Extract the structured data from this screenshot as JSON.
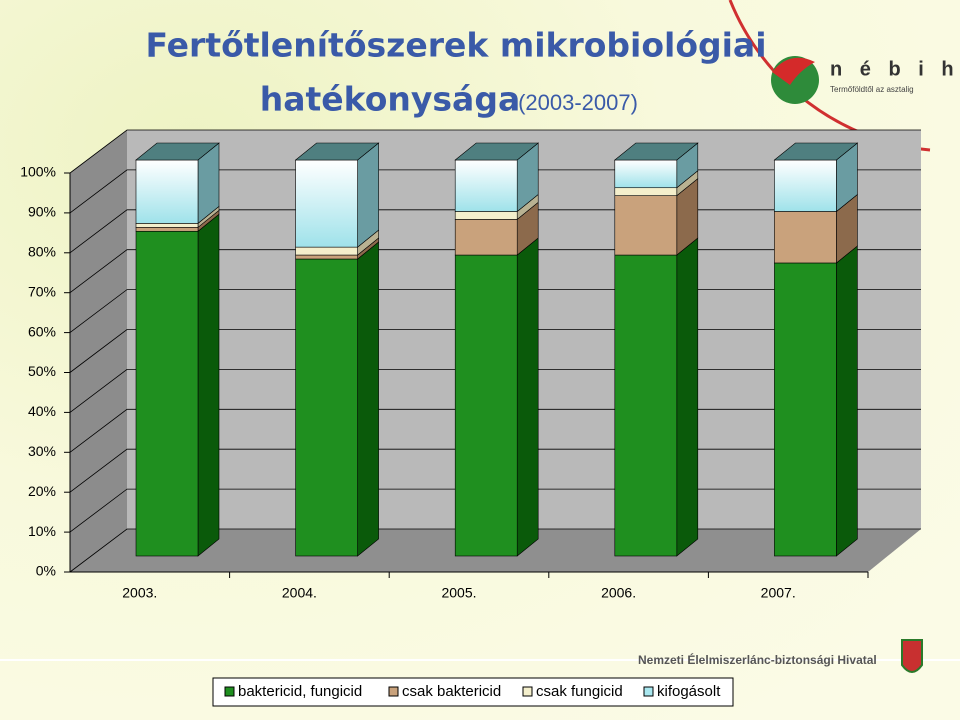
{
  "chart_data": {
    "type": "bar3d_stacked",
    "title": "Fertőtlenítőszerek mikrobiológiai",
    "title_line2": "hatékonysága",
    "subtitle": "(2003-2007)",
    "categories": [
      "2003.",
      "2004.",
      "2005.",
      "2006.",
      "2007."
    ],
    "series": [
      {
        "name": "baktericid, fungicid",
        "color": "#1f8f1f",
        "values": [
          82,
          75,
          76,
          76,
          74
        ]
      },
      {
        "name": "csak baktericid",
        "color": "#c9a27c",
        "values": [
          1,
          1,
          9,
          15,
          13
        ]
      },
      {
        "name": "csak fungicid",
        "color": "#f4efcc",
        "values": [
          1,
          2,
          2,
          2,
          0
        ]
      },
      {
        "name": "kifogásolt",
        "color": "#a9e7ef",
        "values": [
          16,
          22,
          13,
          7,
          13
        ]
      }
    ],
    "ylim": [
      0,
      100
    ],
    "yticks": [
      {
        "value": 0,
        "label": "0%"
      },
      {
        "value": 10,
        "label": "10%"
      },
      {
        "value": 20,
        "label": "20%"
      },
      {
        "value": 30,
        "label": "30%"
      },
      {
        "value": 40,
        "label": "40%"
      },
      {
        "value": 50,
        "label": "50%"
      },
      {
        "value": 60,
        "label": "60%"
      },
      {
        "value": 70,
        "label": "70%"
      },
      {
        "value": 80,
        "label": "80%"
      },
      {
        "value": 90,
        "label": "90%"
      },
      {
        "value": 100,
        "label": "100%"
      }
    ],
    "grid": true
  },
  "logo": {
    "name": "n é b i h",
    "slogan": "Termőföldtől az asztalig"
  },
  "footer": {
    "text": "Nemzeti Élelmiszerlánc-biztonsági Hivatal"
  }
}
